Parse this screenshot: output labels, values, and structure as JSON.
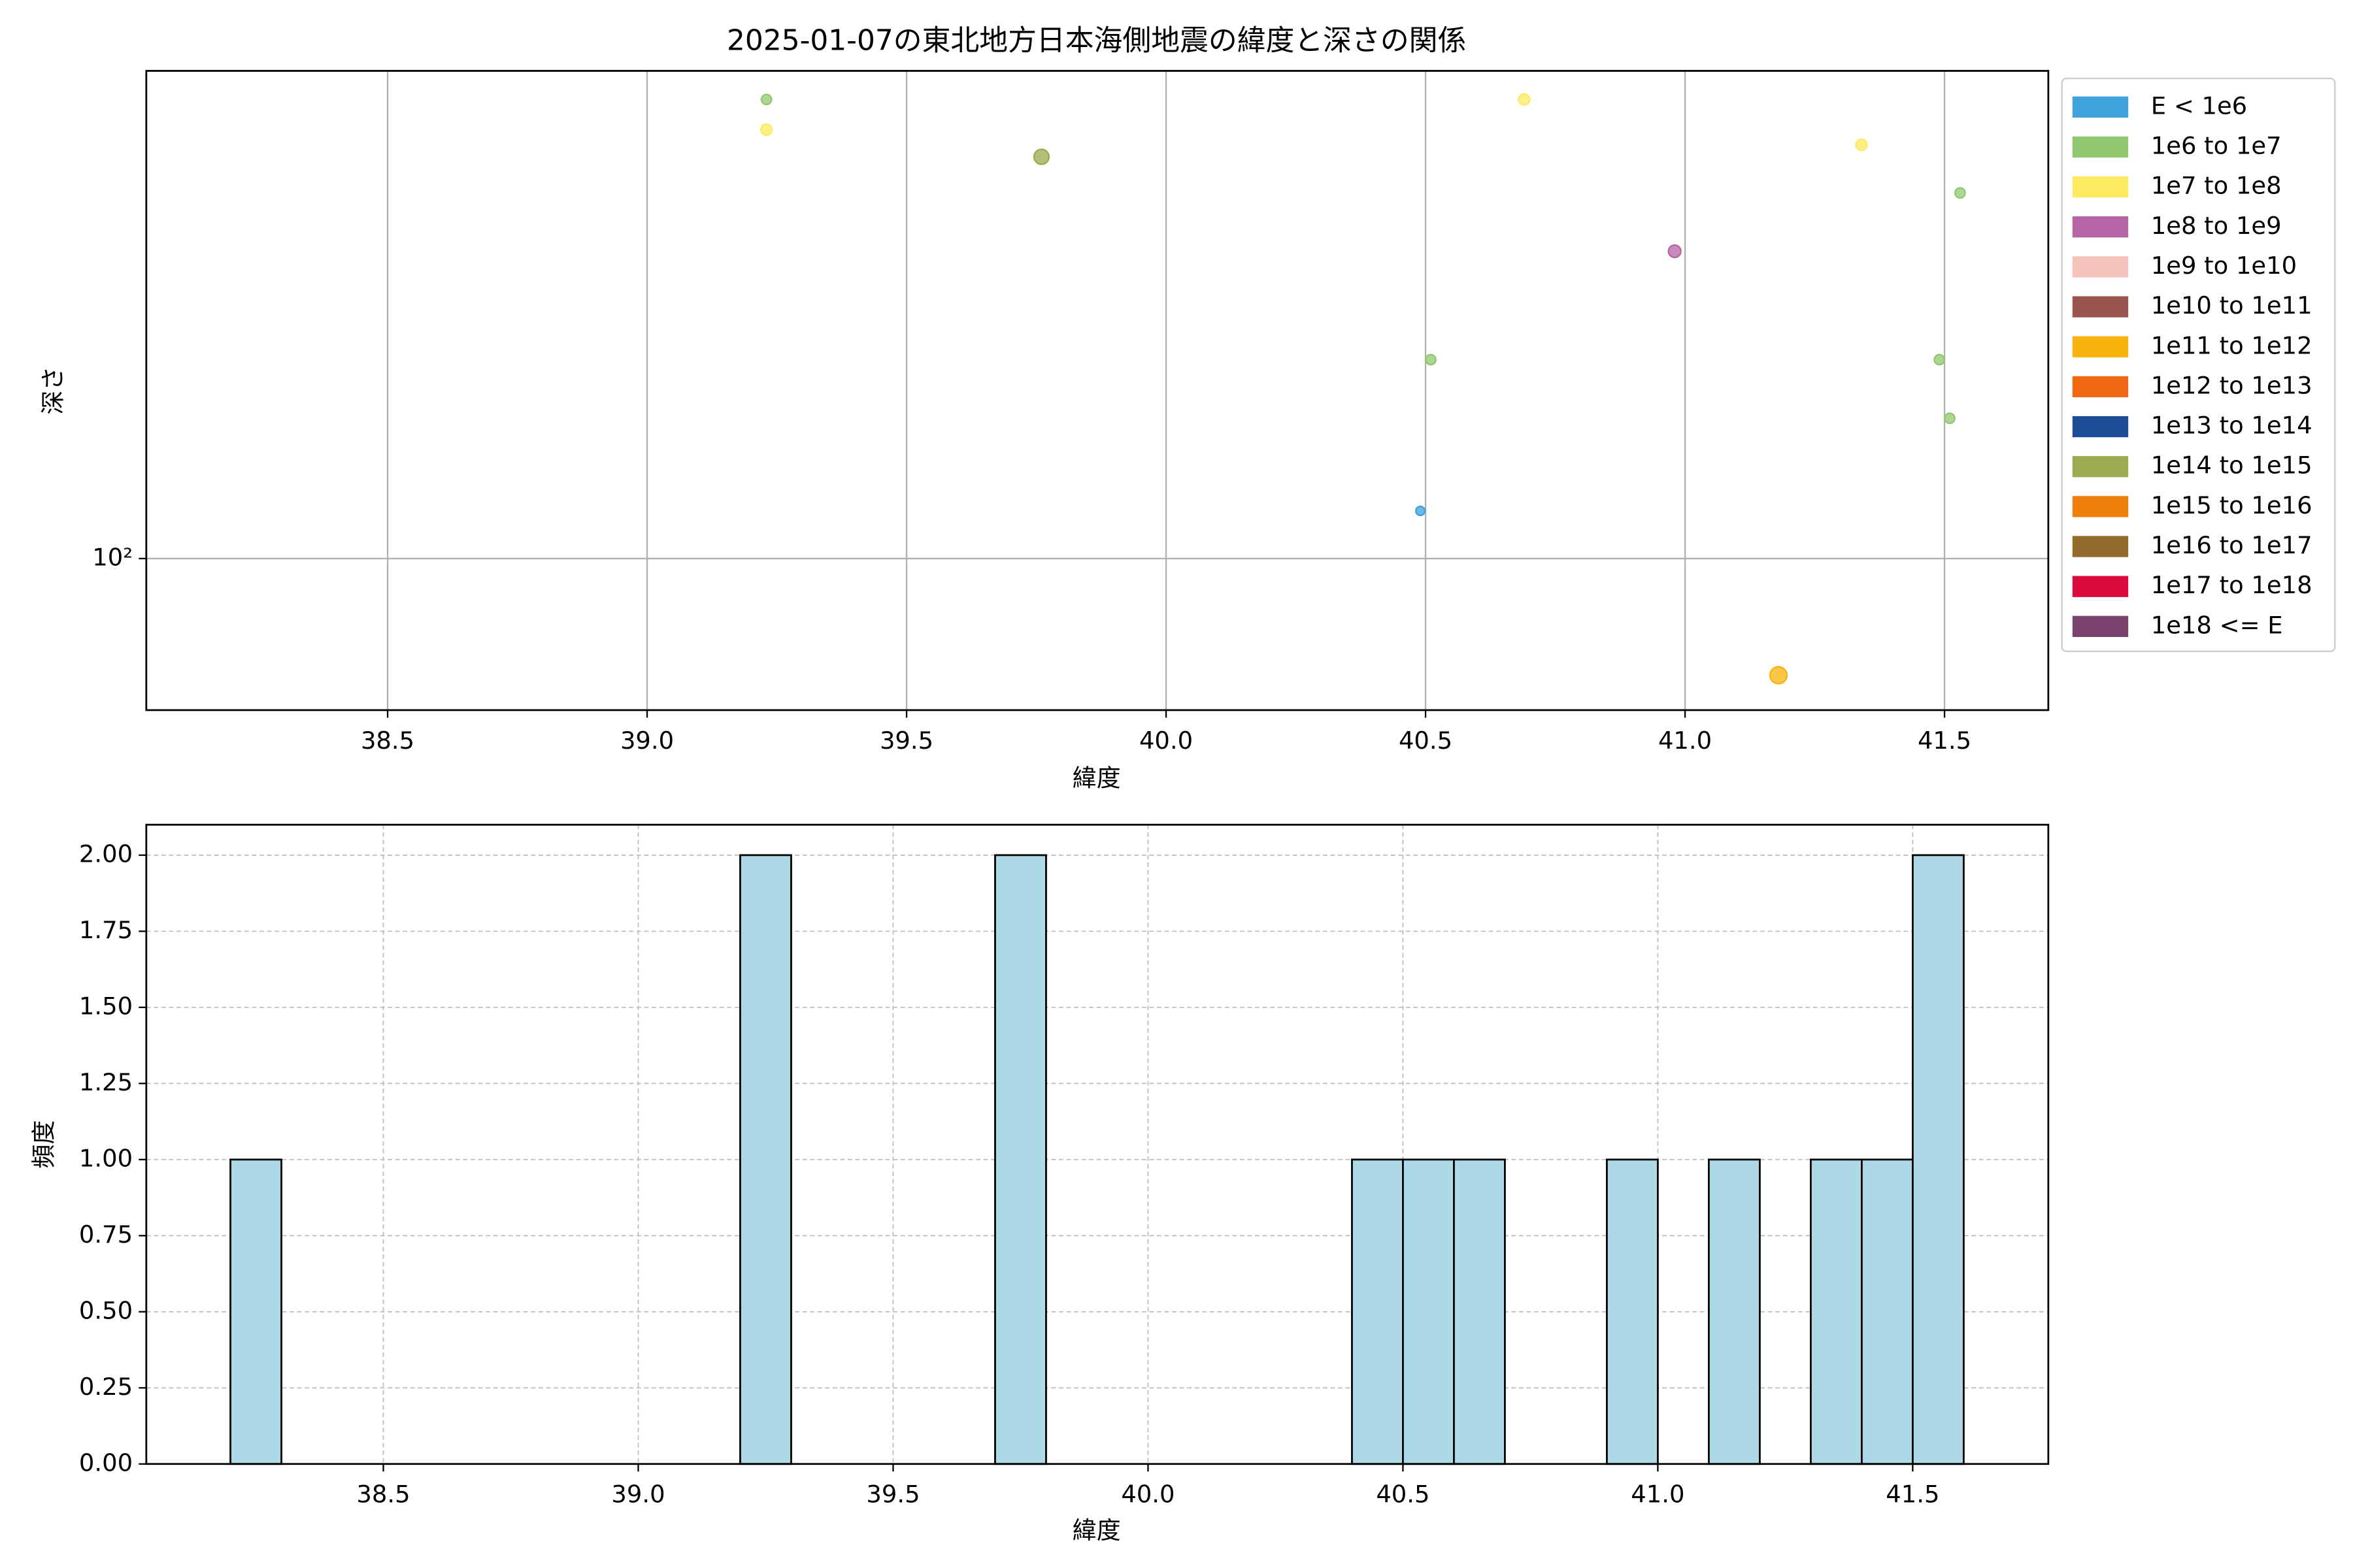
{
  "chart_data": [
    {
      "type": "scatter",
      "title": "2025-01-07の東北地方日本海側地震の緯度と深さの関係",
      "x_label": "緯度",
      "y_label": "深さ",
      "log_y": true,
      "grid": true,
      "legend": "outside right",
      "xlim": [
        38.035,
        41.7
      ],
      "ylim": [
        56,
        646
      ],
      "xticks": [
        38.5,
        {
          "value": 39,
          "label": "39.0"
        },
        39.5,
        {
          "value": 40,
          "label": "40.0"
        },
        40.5,
        {
          "value": 41,
          "label": "41.0"
        },
        41.5
      ],
      "yticks": [
        {
          "value": 100,
          "label": "10²"
        }
      ],
      "series": [
        {
          "name": "E < 1e6",
          "color": "#3fa2dc",
          "x": [
            40.49
          ],
          "values": [
            120
          ],
          "sizes": [
            16
          ]
        },
        {
          "name": "1e6 to 1e7",
          "color": "#8fc870",
          "x": [
            39.23,
            40.51,
            41.53,
            41.49,
            41.51
          ],
          "values": [
            579,
            214,
            405,
            214,
            171
          ],
          "sizes": [
            20,
            20,
            20,
            20,
            20
          ]
        },
        {
          "name": "1e7 to 1e8",
          "color": "#fdea60",
          "x": [
            39.23,
            40.69,
            41.34
          ],
          "values": [
            516,
            579,
            487
          ],
          "sizes": [
            24,
            24,
            24
          ]
        },
        {
          "name": "1e8 to 1e9",
          "color": "#b564a5",
          "x": [
            40.98
          ],
          "values": [
            324
          ],
          "sizes": [
            30
          ]
        },
        {
          "name": "1e9 to 1e10",
          "color": "#f4c2bb",
          "x": [],
          "values": [],
          "sizes": []
        },
        {
          "name": "1e10 to 1e11",
          "color": "#9a5550",
          "x": [],
          "values": [],
          "sizes": []
        },
        {
          "name": "1e11 to 1e12",
          "color": "#f8b40c",
          "x": [
            41.18
          ],
          "values": [
            64
          ],
          "sizes": [
            56
          ]
        },
        {
          "name": "1e12 to 1e13",
          "color": "#ef6712",
          "x": [],
          "values": [],
          "sizes": []
        },
        {
          "name": "1e13 to 1e14",
          "color": "#1c4d94",
          "x": [],
          "values": [],
          "sizes": []
        },
        {
          "name": "1e14 to 1e15",
          "color": "#9aab50",
          "x": [
            39.76
          ],
          "values": [
            465
          ],
          "sizes": [
            44
          ]
        },
        {
          "name": "1e15 to 1e16",
          "color": "#f0800c",
          "x": [],
          "values": [],
          "sizes": []
        },
        {
          "name": "1e16 to 1e17",
          "color": "#926b2d",
          "x": [],
          "values": [],
          "sizes": []
        },
        {
          "name": "1e17 to 1e18",
          "color": "#dc0a3c",
          "x": [],
          "values": [],
          "sizes": []
        },
        {
          "name": "1e18 <= E",
          "color": "#7a436e",
          "x": [],
          "values": [],
          "sizes": []
        }
      ]
    },
    {
      "type": "histogram",
      "x_label": "緯度",
      "y_label": "頻度",
      "grid": true,
      "color": "#add8e6",
      "xlim": [
        38.035,
        41.766
      ],
      "ylim": [
        0,
        2.1
      ],
      "xticks": [
        38.5,
        {
          "value": 39,
          "label": "39.0"
        },
        39.5,
        {
          "value": 40,
          "label": "40.0"
        },
        40.5,
        {
          "value": 41,
          "label": "41.0"
        },
        41.5
      ],
      "yticks": [
        {
          "value": 0,
          "label": "0.00"
        },
        {
          "value": 0.25,
          "label": "0.25"
        },
        {
          "value": 0.5,
          "label": "0.50"
        },
        {
          "value": 0.75,
          "label": "0.75"
        },
        {
          "value": 1,
          "label": "1.00"
        },
        {
          "value": 1.25,
          "label": "1.25"
        },
        {
          "value": 1.5,
          "label": "1.50"
        },
        {
          "value": 1.75,
          "label": "1.75"
        },
        {
          "value": 2,
          "label": "2.00"
        }
      ],
      "bins": [
        38.2,
        38.3,
        38.4,
        38.5,
        38.6,
        38.7,
        38.8,
        38.9,
        39.0,
        39.1,
        39.2,
        39.3,
        39.4,
        39.5,
        39.6,
        39.7,
        39.8,
        39.9,
        40.0,
        40.1,
        40.2,
        40.3,
        40.4,
        40.5,
        40.6,
        40.7,
        40.8,
        40.9,
        41.0,
        41.1,
        41.2,
        41.3,
        41.4,
        41.5,
        41.6
      ],
      "values": [
        1,
        0,
        0,
        0,
        0,
        0,
        0,
        0,
        0,
        0,
        2,
        0,
        0,
        0,
        0,
        2,
        0,
        0,
        0,
        0,
        0,
        0,
        1,
        1,
        1,
        0,
        0,
        1,
        0,
        1,
        0,
        1,
        1,
        2
      ]
    }
  ]
}
